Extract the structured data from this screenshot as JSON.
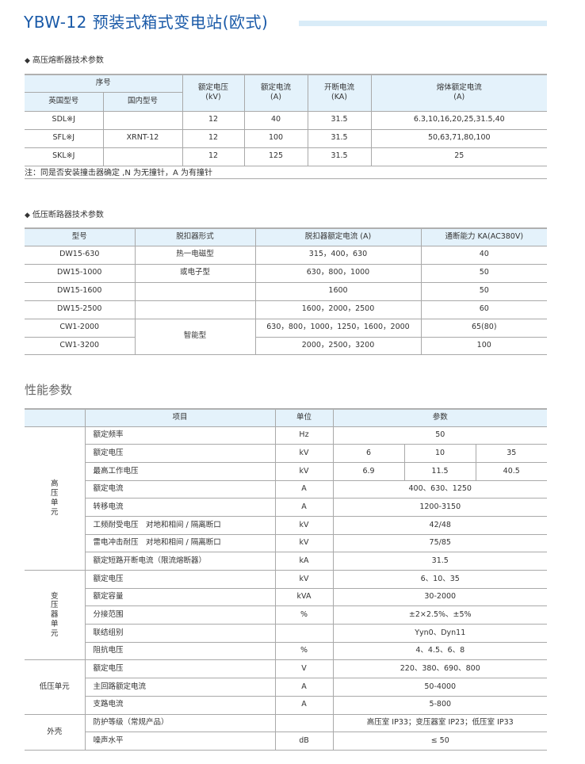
{
  "title": "YBW-12 预装式箱式变电站(欧式)",
  "fuse": {
    "section": "高压熔断器技术参数",
    "headers": {
      "serial": "序号",
      "uk_model": "英国型号",
      "cn_model": "国内型号",
      "voltage": "额定电压",
      "voltage_unit": "(kV)",
      "current": "额定电流",
      "current_unit": "(A)",
      "breaking": "开断电流",
      "breaking_unit": "(KA)",
      "fuse_current": "熔体额定电流",
      "fuse_current_unit": "(A)"
    },
    "rows": [
      {
        "uk": "SDL※J",
        "cn": "",
        "v": "12",
        "a": "40",
        "ka": "31.5",
        "fuse": "6.3,10,16,20,25,31.5,40"
      },
      {
        "uk": "SFL※J",
        "cn": "XRNT-12",
        "v": "12",
        "a": "100",
        "ka": "31.5",
        "fuse": "50,63,71,80,100"
      },
      {
        "uk": "SKL※J",
        "cn": "",
        "v": "12",
        "a": "125",
        "ka": "31.5",
        "fuse": "25"
      }
    ],
    "note": "注：同是否安装撞击器确定 ,N 为无撞针，A 为有撞针"
  },
  "breaker": {
    "section": "低压断路器技术参数",
    "headers": [
      "型号",
      "脱扣器形式",
      "脱扣器额定电流 (A)",
      "通断能力 KA(AC380V)"
    ],
    "trip_types": {
      "a": "热一电磁型",
      "b": "或电子型",
      "c": "智能型"
    },
    "rows": [
      {
        "model": "DW15-630",
        "current": "315，400，630",
        "cap": "40"
      },
      {
        "model": "DW15-1000",
        "current": "630，800，1000",
        "cap": "50"
      },
      {
        "model": "DW15-1600",
        "current": "1600",
        "cap": "50"
      },
      {
        "model": "DW15-2500",
        "current": "1600，2000，2500",
        "cap": "60"
      },
      {
        "model": "CW1-2000",
        "current": "630，800，1000，1250，1600，2000",
        "cap": "65(80)"
      },
      {
        "model": "CW1-3200",
        "current": "2000，2500，3200",
        "cap": "100"
      }
    ]
  },
  "perf": {
    "section": "性能参数",
    "headers": [
      "项目",
      "单位",
      "参数"
    ],
    "groups": {
      "hv": "高\n压\n单\n元",
      "tr": "变\n压\n器\n单\n元",
      "lv": "低压单元",
      "enc": "外壳"
    },
    "hv": [
      {
        "item": "额定频率",
        "unit": "Hz",
        "val": "50"
      },
      {
        "item": "额定电压",
        "unit": "kV",
        "v1": "6",
        "v2": "10",
        "v3": "35"
      },
      {
        "item": "最高工作电压",
        "unit": "kV",
        "v1": "6.9",
        "v2": "11.5",
        "v3": "40.5"
      },
      {
        "item": "额定电流",
        "unit": "A",
        "val": "400、630、1250"
      },
      {
        "item": "转移电流",
        "unit": "A",
        "val": "1200-3150"
      },
      {
        "item": "工频耐受电压　对地和相间 / 隔离断口",
        "unit": "kV",
        "val": "42/48"
      },
      {
        "item": "雷电冲击耐压　对地和相间 / 隔离断口",
        "unit": "kV",
        "val": "75/85"
      },
      {
        "item": "额定短路开断电流（限流熔断器）",
        "unit": "kA",
        "val": "31.5"
      }
    ],
    "tr": [
      {
        "item": "额定电压",
        "unit": "kV",
        "val": "6、10、35"
      },
      {
        "item": "额定容量",
        "unit": "kVA",
        "val": "30-2000"
      },
      {
        "item": "分接范围",
        "unit": "%",
        "val": "±2×2.5%、±5%"
      },
      {
        "item": "联结组别",
        "unit": "",
        "val": "Yyn0、Dyn11"
      },
      {
        "item": "阻抗电压",
        "unit": "%",
        "val": "4、4.5、6、8"
      }
    ],
    "lv": [
      {
        "item": "额定电压",
        "unit": "V",
        "val": "220、380、690、800"
      },
      {
        "item": "主回路额定电流",
        "unit": "A",
        "val": "50-4000"
      },
      {
        "item": "支路电流",
        "unit": "A",
        "val": "5-800"
      }
    ],
    "enc": [
      {
        "item": "防护等级（常规产品）",
        "unit": "",
        "val": "高压室 IP33；变压器室 IP23；低压室 IP33"
      },
      {
        "item": "噪声水平",
        "unit": "dB",
        "val": "≤ 50"
      }
    ]
  },
  "colors": {
    "title": "#1a5aa8",
    "header_bg": "#e4f2fb",
    "title_bar": "#d9ecf8"
  }
}
